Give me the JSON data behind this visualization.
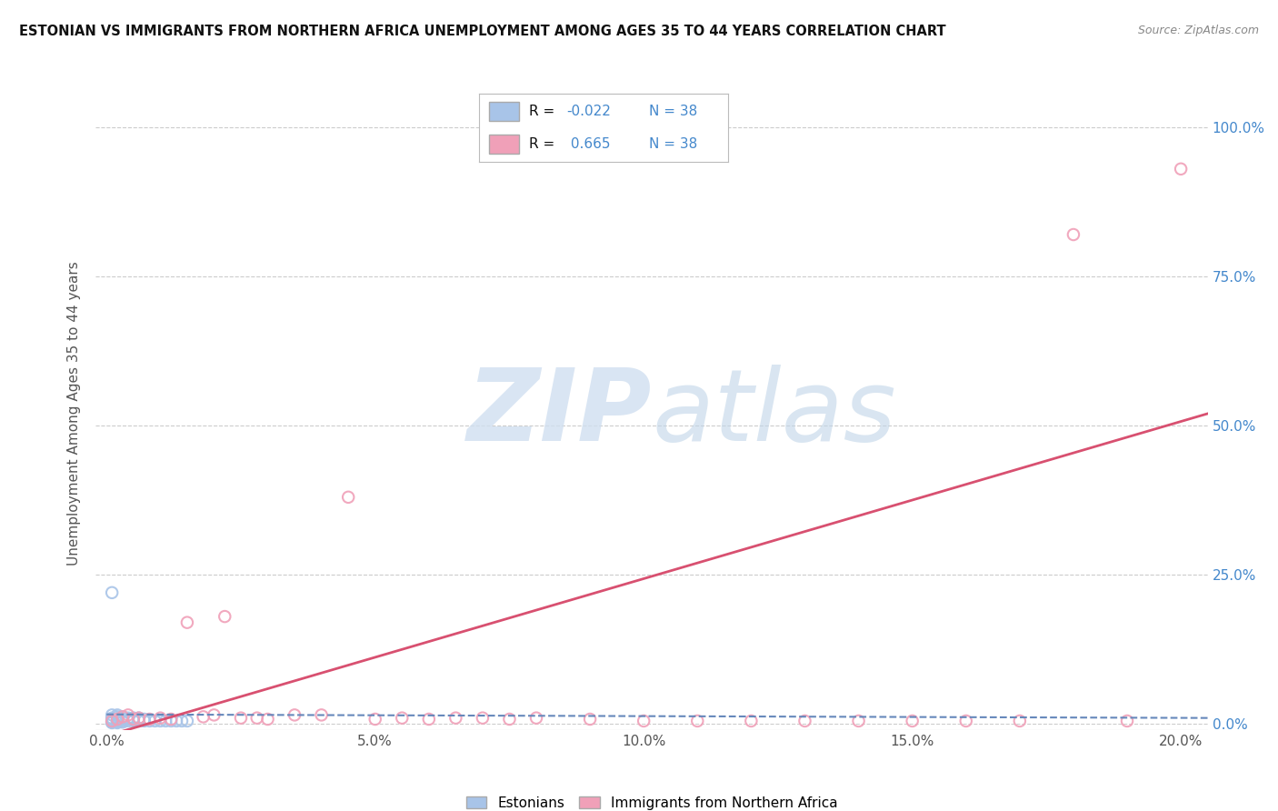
{
  "title": "ESTONIAN VS IMMIGRANTS FROM NORTHERN AFRICA UNEMPLOYMENT AMONG AGES 35 TO 44 YEARS CORRELATION CHART",
  "source": "Source: ZipAtlas.com",
  "ylabel": "Unemployment Among Ages 35 to 44 years",
  "xlim": [
    -0.002,
    0.205
  ],
  "ylim": [
    -0.01,
    1.05
  ],
  "x_ticks": [
    0.0,
    0.05,
    0.1,
    0.15,
    0.2
  ],
  "x_tick_labels": [
    "0.0%",
    "5.0%",
    "10.0%",
    "15.0%",
    "20.0%"
  ],
  "y_ticks_right": [
    0.0,
    0.25,
    0.5,
    0.75,
    1.0
  ],
  "y_tick_labels_right": [
    "0.0%",
    "25.0%",
    "50.0%",
    "75.0%",
    "100.0%"
  ],
  "legend_r_estonian": "-0.022",
  "legend_r_immigrant": "0.665",
  "legend_n": "38",
  "estonian_color": "#a8c4e8",
  "immigrant_color": "#f0a0b8",
  "estonian_line_color": "#6688bb",
  "immigrant_line_color": "#d85070",
  "background_color": "#ffffff",
  "grid_color": "#cccccc",
  "estonian_x": [
    0.001,
    0.001,
    0.001,
    0.002,
    0.002,
    0.002,
    0.003,
    0.003,
    0.004,
    0.004,
    0.005,
    0.005,
    0.006,
    0.006,
    0.007,
    0.007,
    0.008,
    0.009,
    0.01,
    0.011,
    0.012,
    0.013,
    0.014,
    0.015,
    0.001,
    0.002,
    0.003,
    0.004,
    0.005,
    0.006,
    0.001,
    0.002,
    0.003,
    0.001,
    0.002,
    0.001,
    0.001,
    0.002
  ],
  "estonian_y": [
    0.005,
    0.008,
    0.01,
    0.005,
    0.008,
    0.012,
    0.005,
    0.008,
    0.005,
    0.008,
    0.005,
    0.007,
    0.005,
    0.008,
    0.005,
    0.008,
    0.005,
    0.005,
    0.005,
    0.005,
    0.005,
    0.005,
    0.005,
    0.005,
    0.015,
    0.015,
    0.012,
    0.01,
    0.01,
    0.01,
    0.003,
    0.003,
    0.003,
    0.22,
    0.005,
    0.003,
    0.002,
    0.002
  ],
  "immigrant_x": [
    0.001,
    0.002,
    0.003,
    0.004,
    0.005,
    0.006,
    0.008,
    0.01,
    0.012,
    0.015,
    0.018,
    0.02,
    0.022,
    0.025,
    0.028,
    0.03,
    0.035,
    0.04,
    0.045,
    0.05,
    0.055,
    0.06,
    0.065,
    0.07,
    0.075,
    0.08,
    0.09,
    0.1,
    0.11,
    0.12,
    0.13,
    0.14,
    0.15,
    0.16,
    0.17,
    0.18,
    0.19,
    0.2
  ],
  "immigrant_y": [
    0.005,
    0.008,
    0.012,
    0.015,
    0.008,
    0.01,
    0.008,
    0.01,
    0.008,
    0.17,
    0.012,
    0.015,
    0.18,
    0.01,
    0.01,
    0.008,
    0.015,
    0.015,
    0.38,
    0.008,
    0.01,
    0.008,
    0.01,
    0.01,
    0.008,
    0.01,
    0.008,
    0.005,
    0.005,
    0.005,
    0.005,
    0.005,
    0.005,
    0.005,
    0.005,
    0.82,
    0.005,
    0.93
  ],
  "imm_trend_x0": 0.0,
  "imm_trend_y0": -0.02,
  "imm_trend_x1": 0.205,
  "imm_trend_y1": 0.52,
  "est_trend_x0": 0.0,
  "est_trend_y0": 0.016,
  "est_trend_x1": 0.205,
  "est_trend_y1": 0.01
}
